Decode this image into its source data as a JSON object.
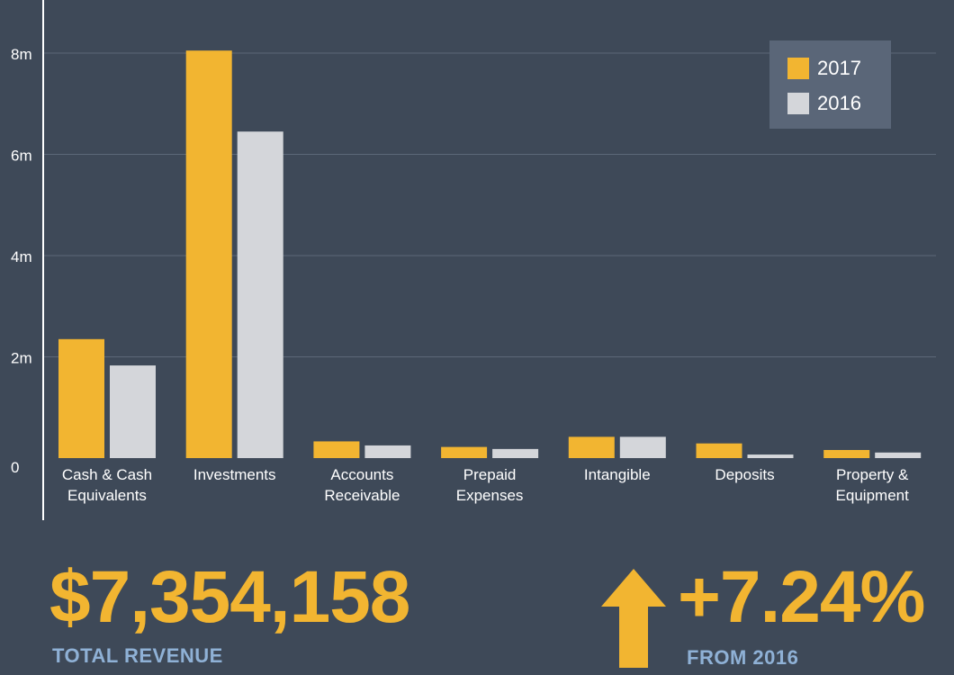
{
  "chart_data": {
    "type": "bar",
    "categories": [
      [
        "Cash & Cash",
        "Equivalents"
      ],
      [
        "Investments"
      ],
      [
        "Accounts",
        "Receivable"
      ],
      [
        "Prepaid",
        "Expenses"
      ],
      [
        "Intangible"
      ],
      [
        "Deposits"
      ],
      [
        "Property &",
        "Equipment"
      ]
    ],
    "series": [
      {
        "name": "2017",
        "color": "#f2b531",
        "values": [
          2.35,
          8.05,
          0.33,
          0.22,
          0.42,
          0.29,
          0.16
        ]
      },
      {
        "name": "2016",
        "color": "#d4d6da",
        "values": [
          1.83,
          6.45,
          0.25,
          0.18,
          0.42,
          0.07,
          0.11
        ]
      }
    ],
    "ylim": [
      0,
      8
    ],
    "yticks": [
      {
        "value": 0,
        "label": "0"
      },
      {
        "value": 2,
        "label": "2m"
      },
      {
        "value": 4,
        "label": "4m"
      },
      {
        "value": 6,
        "label": "6m"
      },
      {
        "value": 8,
        "label": "8m"
      }
    ],
    "grid": true,
    "legend_position": "top-right"
  },
  "stats": {
    "revenue_value": "$7,354,158",
    "revenue_label": "TOTAL REVENUE",
    "change_value": "+7.24%",
    "change_label": "FROM 2016"
  },
  "icons": {
    "change_arrow": "arrow-up-icon"
  }
}
